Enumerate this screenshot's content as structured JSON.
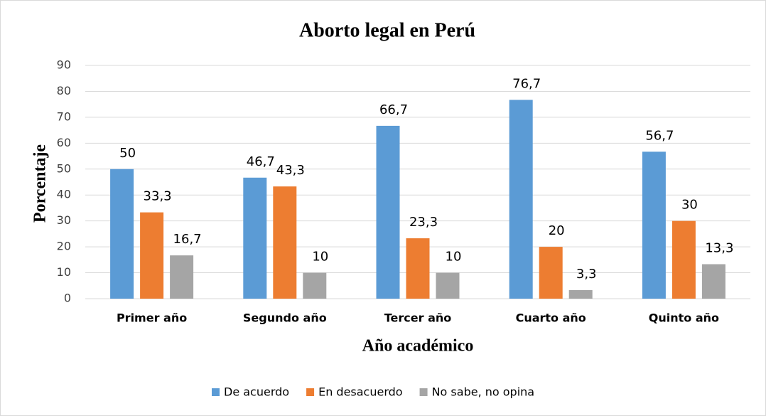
{
  "chart_data": {
    "type": "bar",
    "title": "Aborto legal en Perú",
    "x_label": "Año académico",
    "y_label": "Porcentaje",
    "categories": [
      "Primer año",
      "Segundo año",
      "Tercer año",
      "Cuarto año",
      "Quinto año"
    ],
    "series": [
      {
        "name": "De acuerdo",
        "color": "#5b9bd5",
        "values": [
          50,
          46.7,
          66.7,
          76.7,
          56.7
        ],
        "value_labels": [
          "50",
          "46,7",
          "66,7",
          "76,7",
          "56,7"
        ]
      },
      {
        "name": "En desacuerdo",
        "color": "#ed7d31",
        "values": [
          33.3,
          43.3,
          23.3,
          20,
          30
        ],
        "value_labels": [
          "33,3",
          "43,3",
          "23,3",
          "20",
          "30"
        ]
      },
      {
        "name": "No sabe, no opina",
        "color": "#a5a5a5",
        "values": [
          16.7,
          10,
          10,
          3.3,
          13.3
        ],
        "value_labels": [
          "16,7",
          "10",
          "10",
          "3,3",
          "13,3"
        ]
      }
    ],
    "ylim": [
      0,
      90
    ],
    "yticks": [
      0,
      10,
      20,
      30,
      40,
      50,
      60,
      70,
      80,
      90
    ],
    "grid": true,
    "legend": "bottom"
  }
}
